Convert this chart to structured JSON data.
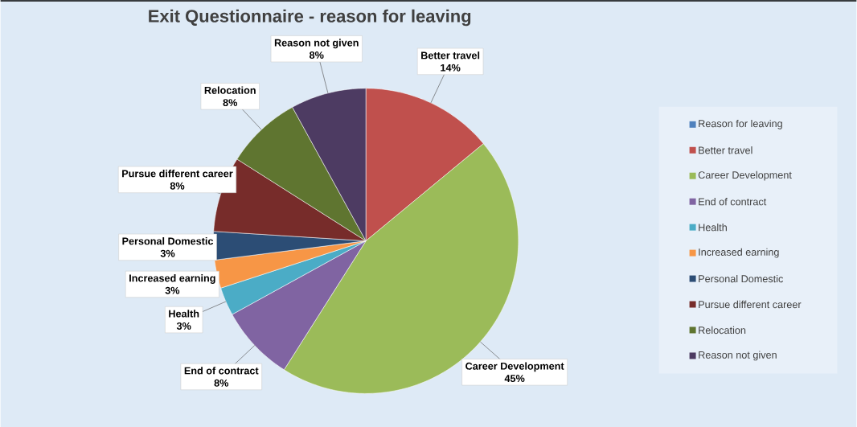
{
  "chart_data": {
    "type": "pie",
    "title": "Exit Questionnaire - reason for leaving",
    "categories": [
      "Reason for leaving",
      "Better travel",
      "Career Development",
      "End of contract",
      "Health",
      "Increased earning",
      "Personal Domestic",
      "Pursue different career",
      "Relocation",
      "Reason not given"
    ],
    "values": [
      0,
      14,
      45,
      8,
      3,
      3,
      3,
      8,
      8,
      8
    ],
    "colors": [
      "#4f81bd",
      "#c0504d",
      "#9bbb59",
      "#8064a2",
      "#4bacc6",
      "#f79646",
      "#2c4d75",
      "#772c2a",
      "#5f7530",
      "#4d3b62"
    ],
    "value_labels": [
      null,
      "14%",
      "45%",
      "8%",
      "3%",
      "3%",
      "3%",
      "8%",
      "8%",
      "8%"
    ],
    "legend": "right"
  }
}
